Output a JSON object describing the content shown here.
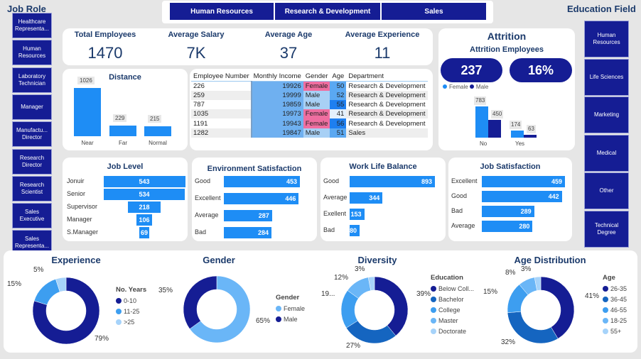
{
  "tabs": [
    "Human Resources",
    "Research & Development",
    "Sales"
  ],
  "job_role": {
    "title": "Job Role",
    "items": [
      "Healthcare Representa...",
      "Human Resources",
      "Laboratory Technician",
      "Manager",
      "Manufactu... Director",
      "Research Director",
      "Research Scientist",
      "Sales Executive",
      "Sales Representa..."
    ]
  },
  "education_field": {
    "title": "Education Field",
    "items": [
      "Human Resources",
      "Life Sciences",
      "Marketing",
      "Medical",
      "Other",
      "Technical Degree"
    ]
  },
  "kpis": [
    {
      "label": "Total Employees",
      "value": "1470"
    },
    {
      "label": "Average Salary",
      "value": "7K"
    },
    {
      "label": "Average Age",
      "value": "37"
    },
    {
      "label": "Average Experience",
      "value": "11"
    }
  ],
  "attrition": {
    "title": "Attrition",
    "subtitle": "Attrition Employees",
    "count": "237",
    "rate": "16%",
    "legend": [
      "Female",
      "Male"
    ],
    "categories": [
      "No",
      "Yes"
    ],
    "female": [
      783,
      174
    ],
    "male": [
      450,
      63
    ]
  },
  "distance": {
    "title": "Distance",
    "categories": [
      "Near",
      "Far",
      "Normal"
    ],
    "values": [
      1026,
      229,
      215
    ]
  },
  "table": {
    "columns": [
      "Employee Number",
      "Monthly Income",
      "Gender",
      "Age",
      "Department"
    ],
    "rows": [
      [
        "226",
        "19926",
        "Female",
        "50",
        "Research & Development"
      ],
      [
        "259",
        "19999",
        "Male",
        "52",
        "Research & Development"
      ],
      [
        "787",
        "19859",
        "Male",
        "55",
        "Research & Development"
      ],
      [
        "1035",
        "19973",
        "Female",
        "41",
        "Research & Development"
      ],
      [
        "1191",
        "19943",
        "Female",
        "56",
        "Research & Development"
      ],
      [
        "1282",
        "19847",
        "Male",
        "51",
        "Sales"
      ]
    ]
  },
  "job_level": {
    "title": "Job Level",
    "categories": [
      "Jonuir",
      "Senior",
      "Supervisor",
      "Manager",
      "S.Manager"
    ],
    "values": [
      543,
      534,
      218,
      106,
      69
    ]
  },
  "env_sat": {
    "title": "Environment Satisfaction",
    "categories": [
      "Good",
      "Excellent",
      "Average",
      "Bad"
    ],
    "values": [
      453,
      446,
      287,
      284
    ]
  },
  "wlb": {
    "title": "Work Life Balance",
    "categories": [
      "Good",
      "Average",
      "Exellent",
      "Bad"
    ],
    "values": [
      893,
      344,
      153,
      80
    ]
  },
  "job_sat": {
    "title": "Job Satisfaction",
    "categories": [
      "Excellent",
      "Good",
      "Bad",
      "Average"
    ],
    "values": [
      459,
      442,
      289,
      280
    ]
  },
  "colors": {
    "dark": "#151d94",
    "c2": "#1565c0",
    "c3": "#3d9ef0",
    "c4": "#6ab6f7",
    "c5": "#a6d3fa",
    "bar": "#1e8df5",
    "female_cell": "#f06ea0"
  },
  "donuts": [
    {
      "title": "Experience",
      "legend_title": "No. Years",
      "labels": [
        "0-10",
        "11-25",
        ">25"
      ],
      "values": [
        79,
        15,
        5
      ],
      "pct": [
        "79%",
        "15%",
        "5%"
      ]
    },
    {
      "title": "Gender",
      "legend_title": "Gender",
      "labels": [
        "Female",
        "Male"
      ],
      "values": [
        65,
        35
      ],
      "pct": [
        "65%",
        "35%"
      ]
    },
    {
      "title": "Diversity",
      "legend_title": "Education",
      "labels": [
        "Below Coll...",
        "Bachelor",
        "College",
        "Master",
        "Doctorate"
      ],
      "values": [
        39,
        27,
        19,
        12,
        3
      ],
      "pct": [
        "39%",
        "27%",
        "19...",
        "12%",
        "3%"
      ]
    },
    {
      "title": "Age Distribution",
      "legend_title": "Age",
      "labels": [
        "26-35",
        "36-45",
        "46-55",
        "18-25",
        "55+"
      ],
      "values": [
        41,
        32,
        15,
        8,
        3
      ],
      "pct": [
        "41%",
        "32%",
        "15%",
        "8%",
        "3%"
      ]
    }
  ]
}
